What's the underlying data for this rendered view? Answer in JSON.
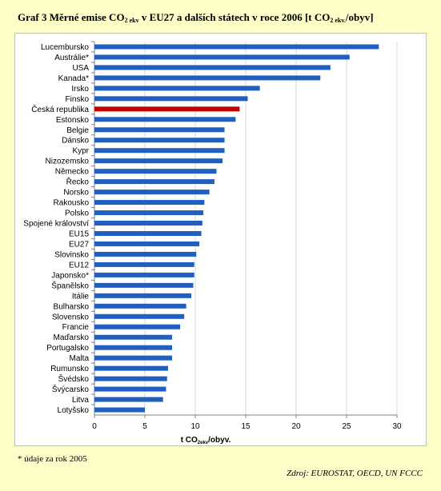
{
  "title_prefix": "Graf 3 Měrné emise CO",
  "title_sub1": "2 ekv",
  "title_middle": " v EU27 a dalších státech v roce 2006 [t CO",
  "title_sub2": "2 ekv.",
  "title_suffix": "/obyv]",
  "footnote": "* údaje za rok 2005",
  "source": "Zdroj: EUROSTAT, OECD, UN FCCC",
  "colors": {
    "bar": "#1f5fbf",
    "highlight": "#c00000",
    "grid": "#d9d9d9"
  },
  "chart_data": {
    "type": "bar",
    "orientation": "horizontal",
    "xlabel_main": "t CO",
    "xlabel_sub": "2ekv",
    "xlabel_end": "/obyv.",
    "xlim": [
      0,
      30
    ],
    "xticks": [
      0,
      5,
      10,
      15,
      20,
      25,
      30
    ],
    "grid": true,
    "highlight": "Česká republika",
    "categories": [
      "Lucembursko",
      "Austrálie*",
      "USA",
      "Kanada*",
      "Irsko",
      "Finsko",
      "Česká republika",
      "Estonsko",
      "Belgie",
      "Dánsko",
      "Kypr",
      "Nizozemsko",
      "Německo",
      "Řecko",
      "Norsko",
      "Rakousko",
      "Polsko",
      "Spojené království",
      "EU15",
      "EU27",
      "Slovinsko",
      "EU12",
      "Japonsko*",
      "Španělsko",
      "Itálie",
      "Bulharsko",
      "Slovensko",
      "Francie",
      "Maďarsko",
      "Portugalsko",
      "Malta",
      "Rumunsko",
      "Švédsko",
      "Švýcarsko",
      "Litva",
      "Lotyšsko"
    ],
    "values": [
      28.2,
      25.3,
      23.4,
      22.4,
      16.4,
      15.2,
      14.4,
      14.0,
      12.9,
      12.9,
      12.9,
      12.7,
      12.1,
      11.9,
      11.4,
      10.9,
      10.8,
      10.7,
      10.6,
      10.4,
      10.1,
      9.9,
      9.9,
      9.8,
      9.6,
      9.1,
      8.9,
      8.5,
      7.7,
      7.7,
      7.7,
      7.3,
      7.2,
      7.1,
      6.8,
      5.0
    ]
  }
}
